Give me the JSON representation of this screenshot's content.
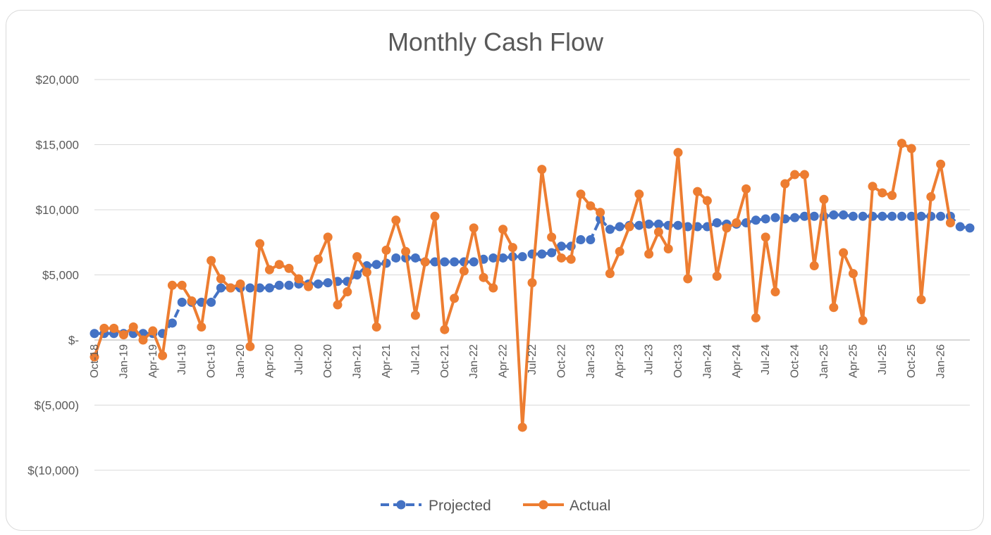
{
  "chart_data": {
    "type": "line",
    "title": "Monthly Cash Flow",
    "xlabel": "",
    "ylabel": "",
    "ylim": [
      -10000,
      20000
    ],
    "y_ticks": [
      20000,
      15000,
      10000,
      5000,
      0,
      -5000,
      -10000
    ],
    "y_tick_labels": [
      "$20,000",
      "$15,000",
      "$10,000",
      "$5,000",
      "$-",
      "$(5,000)",
      "$(10,000)"
    ],
    "x_start": "Oct-18",
    "x_tick_labels": [
      "Oct-18",
      "Jan-19",
      "Apr-19",
      "Jul-19",
      "Oct-19",
      "Jan-20",
      "Apr-20",
      "Jul-20",
      "Oct-20",
      "Jan-21",
      "Apr-21",
      "Jul-21",
      "Oct-21",
      "Jan-22",
      "Apr-22",
      "Jul-22",
      "Oct-22",
      "Jan-23",
      "Apr-23",
      "Jul-23",
      "Oct-23",
      "Jan-24",
      "Apr-24",
      "Jul-24",
      "Oct-24",
      "Jan-25",
      "Apr-25",
      "Jul-25",
      "Oct-25",
      "Jan-26"
    ],
    "grid": true,
    "legend_position": "bottom",
    "series": [
      {
        "name": "Projected",
        "color": "#4472C4",
        "style": "dashed-markers",
        "values": [
          500,
          500,
          500,
          500,
          500,
          500,
          500,
          500,
          1300,
          2900,
          2900,
          2900,
          2900,
          4000,
          4000,
          4000,
          4000,
          4000,
          4000,
          4200,
          4200,
          4300,
          4300,
          4300,
          4400,
          4500,
          4500,
          5000,
          5700,
          5800,
          5900,
          6300,
          6300,
          6300,
          6000,
          6000,
          6000,
          6000,
          6000,
          6000,
          6200,
          6300,
          6300,
          6400,
          6400,
          6600,
          6600,
          6700,
          7200,
          7200,
          7700,
          7700,
          9300,
          8500,
          8700,
          8800,
          8800,
          8900,
          8900,
          8800,
          8800,
          8700,
          8700,
          8700,
          9000,
          8900,
          8900,
          9000,
          9200,
          9300,
          9400,
          9300,
          9400,
          9500,
          9500,
          9500,
          9600,
          9600,
          9500,
          9500,
          9500,
          9500,
          9500,
          9500,
          9500,
          9500,
          9500,
          9500,
          9500,
          8700,
          8600
        ]
      },
      {
        "name": "Actual",
        "color": "#ED7D31",
        "style": "solid-markers",
        "values": [
          -1300,
          900,
          900,
          400,
          1000,
          0,
          700,
          -1200,
          4200,
          4200,
          3000,
          1000,
          6100,
          4700,
          4000,
          4300,
          -500,
          7400,
          5400,
          5800,
          5500,
          4700,
          4100,
          6200,
          7900,
          2700,
          3700,
          6400,
          5200,
          1000,
          6900,
          9200,
          6800,
          1900,
          6000,
          9500,
          800,
          3200,
          5300,
          8600,
          4800,
          4000,
          8500,
          7100,
          -6700,
          4400,
          13100,
          7900,
          6300,
          6200,
          11200,
          10300,
          9800,
          5100,
          6800,
          8700,
          11200,
          6600,
          8300,
          7000,
          14400,
          4700,
          11400,
          10700,
          4900,
          8600,
          9000,
          11600,
          1700,
          7900,
          3700,
          12000,
          12700,
          12700,
          5700,
          10800,
          2500,
          6700,
          5100,
          1500,
          11800,
          11300,
          11100,
          15100,
          14700,
          3100,
          11000,
          13500,
          9000
        ]
      }
    ]
  }
}
